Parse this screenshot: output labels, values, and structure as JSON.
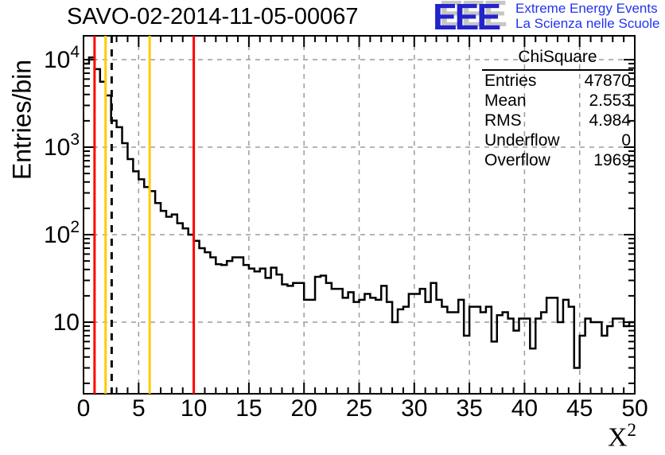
{
  "chart_data": {
    "type": "bar",
    "subtype": "step-histogram",
    "title": "SAVO-02-2014-11-05-00067",
    "xlabel": "X^2",
    "ylabel": "Entries/bin",
    "yscale": "log",
    "xlim": [
      0,
      50
    ],
    "ylim": [
      1.5,
      18700
    ],
    "bin_width": 0.5,
    "bin_start": 0,
    "x_ticks": [
      0,
      5,
      10,
      15,
      20,
      25,
      30,
      35,
      40,
      45,
      50
    ],
    "x_minor_tick_step": 1,
    "y_ticks": [
      {
        "value": 10,
        "base": "10",
        "exp": ""
      },
      {
        "value": 100,
        "base": "10",
        "exp": "2"
      },
      {
        "value": 1000,
        "base": "10",
        "exp": "3"
      },
      {
        "value": 10000,
        "base": "10",
        "exp": "4"
      }
    ],
    "grid": {
      "show": true,
      "color": "#9c9c9c",
      "style": "dashed",
      "x_step": 5,
      "y": "decades"
    },
    "line_color": "#000000",
    "values": [
      9000,
      10600,
      7800,
      5600,
      3900,
      2010,
      1690,
      1110,
      730,
      530,
      430,
      350,
      315,
      230,
      187,
      160,
      170,
      135,
      118,
      100,
      85,
      70,
      63,
      55,
      46,
      45,
      50,
      55,
      55,
      45,
      41,
      38,
      41,
      32,
      42,
      35,
      27,
      26,
      28,
      28,
      18,
      18,
      33,
      34,
      28,
      24,
      24,
      19,
      22,
      17,
      18,
      21,
      19,
      18,
      26,
      17,
      10,
      14,
      15,
      21,
      21,
      24,
      17,
      28,
      18,
      15,
      13,
      13,
      18,
      7,
      15,
      15,
      13,
      15,
      6,
      12,
      13,
      11,
      8,
      11,
      11,
      5,
      11,
      13,
      19,
      19,
      10,
      18,
      15,
      3,
      7,
      11,
      10,
      10,
      7,
      9,
      11,
      11,
      9,
      10
    ],
    "vlines": [
      {
        "x": 1,
        "color": "#ff0000",
        "style": "solid",
        "name": "red-cut-low"
      },
      {
        "x": 2,
        "color": "#ffcc00",
        "style": "solid",
        "name": "yellow-cut-low"
      },
      {
        "x": 2.553,
        "color": "#000000",
        "style": "dashed",
        "name": "mean-line"
      },
      {
        "x": 6,
        "color": "#ffcc00",
        "style": "solid",
        "name": "yellow-cut-high"
      },
      {
        "x": 10,
        "color": "#ff0000",
        "style": "solid",
        "name": "red-cut-high"
      }
    ]
  },
  "axes": {
    "y_label": "Entries/bin",
    "x_label_base": "X",
    "x_label_exp": "2"
  },
  "logo": {
    "eee": "EEE",
    "line1": "Extreme Energy Events",
    "line2": "La Scienza nelle Scuole",
    "color": "#2323cc"
  },
  "stats_box": {
    "title": "ChiSquare",
    "rows": [
      {
        "label": "Entries",
        "value": "47870"
      },
      {
        "label": "Mean",
        "value": "2.553"
      },
      {
        "label": "RMS",
        "value": "4.984"
      },
      {
        "label": "Underflow",
        "value": "0"
      },
      {
        "label": "Overflow",
        "value": "1969"
      }
    ]
  }
}
